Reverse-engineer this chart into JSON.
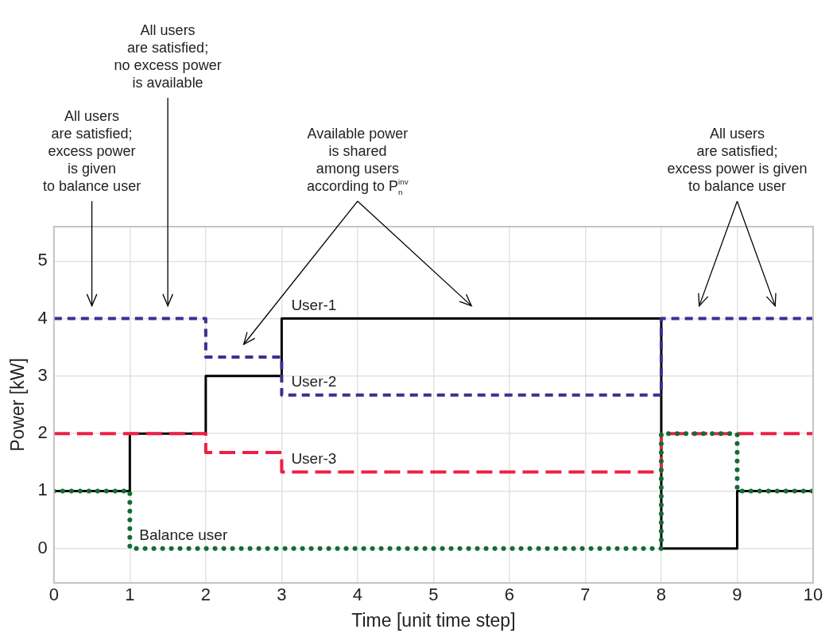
{
  "chart_data": {
    "type": "step",
    "xlabel": "Time [unit time step]",
    "ylabel": "Power [kW]",
    "x": [
      0,
      1,
      2,
      3,
      4,
      5,
      6,
      7,
      8,
      9,
      10
    ],
    "series": [
      {
        "name": "User-1",
        "color": "#000000",
        "line_style": "solid",
        "values": [
          1,
          2,
          3,
          4,
          4,
          4,
          4,
          4,
          0,
          1,
          1
        ]
      },
      {
        "name": "User-2",
        "color": "#3a3093",
        "line_style": "dashed",
        "values": [
          4,
          4,
          3.33,
          2.67,
          2.67,
          2.67,
          2.67,
          2.67,
          4,
          4,
          4
        ]
      },
      {
        "name": "User-3",
        "color": "#ee1f45",
        "line_style": "dashed",
        "values": [
          2,
          2,
          1.67,
          1.33,
          1.33,
          1.33,
          1.33,
          1.33,
          2,
          2,
          2
        ]
      },
      {
        "name": "Balance user",
        "color": "#146b35",
        "line_style": "dotted",
        "values": [
          1,
          0,
          0,
          0,
          0,
          0,
          0,
          0,
          2,
          1,
          1
        ]
      }
    ],
    "xlim": [
      0,
      10
    ],
    "xticks": [
      0,
      1,
      2,
      3,
      4,
      5,
      6,
      7,
      8,
      9,
      10
    ],
    "ylim": [
      -0.6,
      5.6
    ],
    "yticks": [
      0,
      1,
      2,
      3,
      4,
      5
    ],
    "grid": true,
    "marker": "none",
    "annotations": [
      "All users\nare satisfied;\nexcess power\nis given\nto balance user",
      "All users\nare satisfied;\nno excess power\nis available",
      "Available power\nis shared\namong users\naccording to P$_{n}$$^{inv}$",
      "All users\nare satisfied;\nexcess power is given\nto balance user"
    ]
  }
}
